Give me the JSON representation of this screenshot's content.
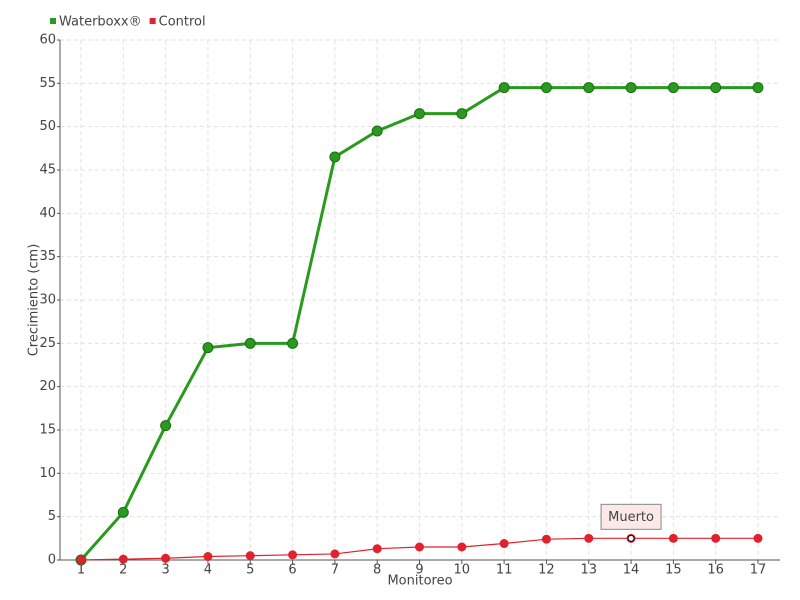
{
  "chart_data": {
    "type": "line",
    "x_label": "Monitoreo",
    "y_label": "Crecimiento (cm)",
    "categories": [
      "1",
      "2",
      "3",
      "4",
      "5",
      "6",
      "7",
      "8",
      "9",
      "10",
      "11",
      "12",
      "13",
      "14",
      "15",
      "16",
      "17"
    ],
    "series": [
      {
        "name": "Waterboxx®",
        "color": "#2a9a1e",
        "values": [
          0,
          5.5,
          15.5,
          24.5,
          25,
          25,
          46.5,
          49.5,
          51.5,
          51.5,
          54.5,
          54.5,
          54.5,
          54.5,
          54.5,
          54.5,
          54.5
        ]
      },
      {
        "name": "Control",
        "color": "#e0222e",
        "values": [
          0,
          0.1,
          0.2,
          0.4,
          0.5,
          0.6,
          0.7,
          1.3,
          1.5,
          1.5,
          1.9,
          2.4,
          2.5,
          2.5,
          2.5,
          2.5,
          2.5
        ]
      }
    ],
    "annotation": {
      "text": "Muerto",
      "series": "Control",
      "category": "14"
    },
    "ylim": [
      0,
      60
    ],
    "yticks": [
      0,
      5,
      10,
      15,
      20,
      25,
      30,
      35,
      40,
      45,
      50,
      55,
      60
    ],
    "grid": true,
    "legend": "top-left"
  }
}
